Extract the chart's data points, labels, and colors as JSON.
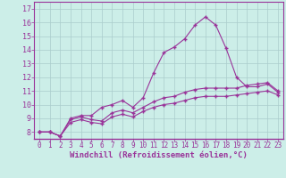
{
  "xlabel": "Windchill (Refroidissement éolien,°C)",
  "bg_color": "#cceee8",
  "line_color": "#993399",
  "grid_color": "#aacccc",
  "x": [
    0,
    1,
    2,
    3,
    4,
    5,
    6,
    7,
    8,
    9,
    10,
    11,
    12,
    13,
    14,
    15,
    16,
    17,
    18,
    19,
    20,
    21,
    22,
    23
  ],
  "line1": [
    8.0,
    8.0,
    7.7,
    9.0,
    9.2,
    9.2,
    9.8,
    10.0,
    10.3,
    9.8,
    10.5,
    12.3,
    13.8,
    14.2,
    14.8,
    15.8,
    16.4,
    15.8,
    14.1,
    12.0,
    11.3,
    11.3,
    11.5,
    10.9
  ],
  "line2": [
    8.0,
    8.0,
    7.7,
    8.9,
    9.1,
    8.9,
    8.8,
    9.4,
    9.6,
    9.4,
    9.8,
    10.2,
    10.5,
    10.6,
    10.9,
    11.1,
    11.2,
    11.2,
    11.2,
    11.2,
    11.4,
    11.5,
    11.6,
    11.0
  ],
  "line3": [
    8.0,
    8.0,
    7.7,
    8.7,
    8.9,
    8.7,
    8.6,
    9.1,
    9.3,
    9.1,
    9.5,
    9.8,
    10.0,
    10.1,
    10.3,
    10.5,
    10.6,
    10.6,
    10.6,
    10.7,
    10.8,
    10.9,
    11.0,
    10.7
  ],
  "ylim": [
    7.5,
    17.5
  ],
  "yticks": [
    8,
    9,
    10,
    11,
    12,
    13,
    14,
    15,
    16,
    17
  ],
  "xticks": [
    0,
    1,
    2,
    3,
    4,
    5,
    6,
    7,
    8,
    9,
    10,
    11,
    12,
    13,
    14,
    15,
    16,
    17,
    18,
    19,
    20,
    21,
    22,
    23
  ],
  "tick_fontsize": 5.5,
  "xlabel_fontsize": 6.5
}
